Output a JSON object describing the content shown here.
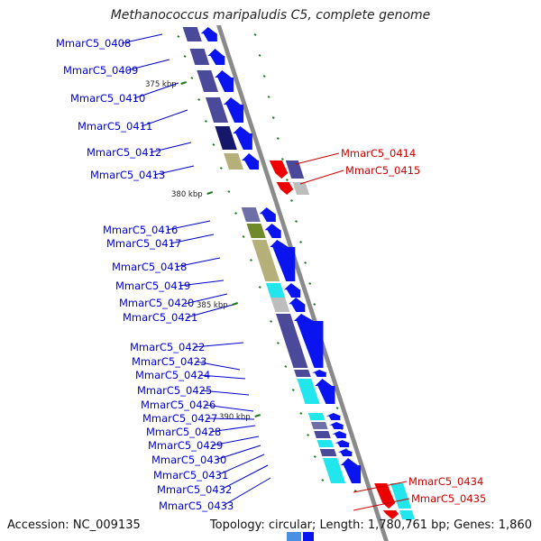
{
  "title": "Methanococcus maripaludis C5, complete genome",
  "footer": {
    "accession": "Accession: NC_009135",
    "topology": "Topology: circular; Length: 1,780,761 bp; Genes: 1,860"
  },
  "colors": {
    "forward_label": "#0000cc",
    "reverse_label": "#cc0000",
    "backbone": "#8a8a8a",
    "tick": "#1a7a1a",
    "arrow_forward": "#0a14ee",
    "arrow_reverse": "#ee0000",
    "cog_purple": "#4b4a9a",
    "cog_navy": "#16166a",
    "cog_olive": "#b5b07a",
    "cog_green": "#6f8a2a",
    "cog_cyan": "#22e6ee",
    "cog_gray": "#bdbdbd",
    "cog_slate": "#6f6fa8"
  },
  "kbp_markers": [
    "375 kbp",
    "380 kbp",
    "385 kbp",
    "390 kbp"
  ],
  "forward_genes": [
    {
      "id": "MmarC5_0408",
      "cog": "cog_purple"
    },
    {
      "id": "MmarC5_0409",
      "cog": "cog_purple"
    },
    {
      "id": "MmarC5_0410",
      "cog": "cog_purple"
    },
    {
      "id": "MmarC5_0411",
      "cog": "cog_purple"
    },
    {
      "id": "MmarC5_0412",
      "cog": "cog_navy"
    },
    {
      "id": "MmarC5_0413",
      "cog": "cog_olive"
    },
    {
      "id": "MmarC5_0416",
      "cog": "cog_slate"
    },
    {
      "id": "MmarC5_0417",
      "cog": "cog_green"
    },
    {
      "id": "MmarC5_0418",
      "cog": "cog_olive"
    },
    {
      "id": "MmarC5_0419",
      "cog": "cog_cyan"
    },
    {
      "id": "MmarC5_0420",
      "cog": "cog_gray"
    },
    {
      "id": "MmarC5_0421",
      "cog": "cog_purple"
    },
    {
      "id": "MmarC5_0422",
      "cog": "cog_purple"
    },
    {
      "id": "MmarC5_0423",
      "cog": "cog_purple"
    },
    {
      "id": "MmarC5_0424",
      "cog": "cog_cyan"
    },
    {
      "id": "MmarC5_0425",
      "cog": "cog_cyan"
    },
    {
      "id": "MmarC5_0426",
      "cog": "cog_purple"
    },
    {
      "id": "MmarC5_0427",
      "cog": "cog_cyan"
    },
    {
      "id": "MmarC5_0428",
      "cog": "cog_purple"
    },
    {
      "id": "MmarC5_0429",
      "cog": "cog_cyan"
    },
    {
      "id": "MmarC5_0430",
      "cog": "cog_purple"
    },
    {
      "id": "MmarC5_0431",
      "cog": "cog_cyan"
    },
    {
      "id": "MmarC5_0432",
      "cog": "cog_cyan"
    },
    {
      "id": "MmarC5_0433",
      "cog": "cog_cyan"
    }
  ],
  "reverse_genes": [
    {
      "id": "MmarC5_0414",
      "cog": "cog_purple"
    },
    {
      "id": "MmarC5_0415",
      "cog": "cog_gray"
    },
    {
      "id": "MmarC5_0434",
      "cog": "cog_cyan"
    },
    {
      "id": "MmarC5_0435",
      "cog": "cog_cyan"
    }
  ]
}
